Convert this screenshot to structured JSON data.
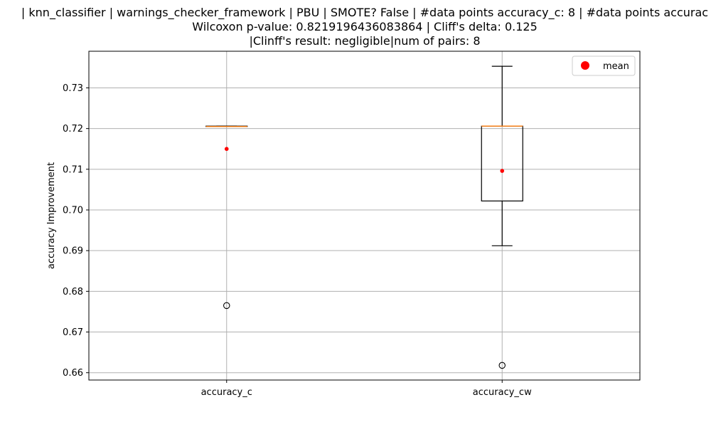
{
  "chart_data": {
    "type": "box",
    "title_lines": [
      "| knn_classifier | warnings_checker_framework | PBU | SMOTE? False | #data points accuracy_c: 8 | #data points accurac",
      "Wilcoxon p-value: 0.8219196436083864 | Cliff's delta: 0.125",
      "|Clinff's result: negligible|num of pairs: 8"
    ],
    "xlabel": "",
    "ylabel": "accuracy Improvement",
    "ylim": [
      0.6582,
      0.739
    ],
    "yticks": [
      0.66,
      0.67,
      0.68,
      0.69,
      0.7,
      0.71,
      0.72,
      0.73
    ],
    "ytick_labels": [
      "0.66",
      "0.67",
      "0.68",
      "0.69",
      "0.70",
      "0.71",
      "0.72",
      "0.73"
    ],
    "grid": true,
    "legend": {
      "placement": "top-right",
      "entries": [
        {
          "label": "mean",
          "marker": "red-circle"
        }
      ]
    },
    "categories": [
      "accuracy_c",
      "accuracy_cw"
    ],
    "boxes": [
      {
        "name": "accuracy_c",
        "whislo": 0.7205,
        "q1": 0.7205,
        "median": 0.7205,
        "q3": 0.7206,
        "whishi": 0.7206,
        "mean": 0.715,
        "fliers": [
          0.6765
        ]
      },
      {
        "name": "accuracy_cw",
        "whislo": 0.6912,
        "q1": 0.7022,
        "median": 0.7206,
        "q3": 0.7206,
        "whishi": 0.7353,
        "mean": 0.7096,
        "fliers": [
          0.6618
        ]
      }
    ],
    "colors": {
      "box": "#000000",
      "median": "#ff7f0e",
      "mean": "#ff0000",
      "grid": "#b0b0b0",
      "flier": "#000000"
    }
  }
}
